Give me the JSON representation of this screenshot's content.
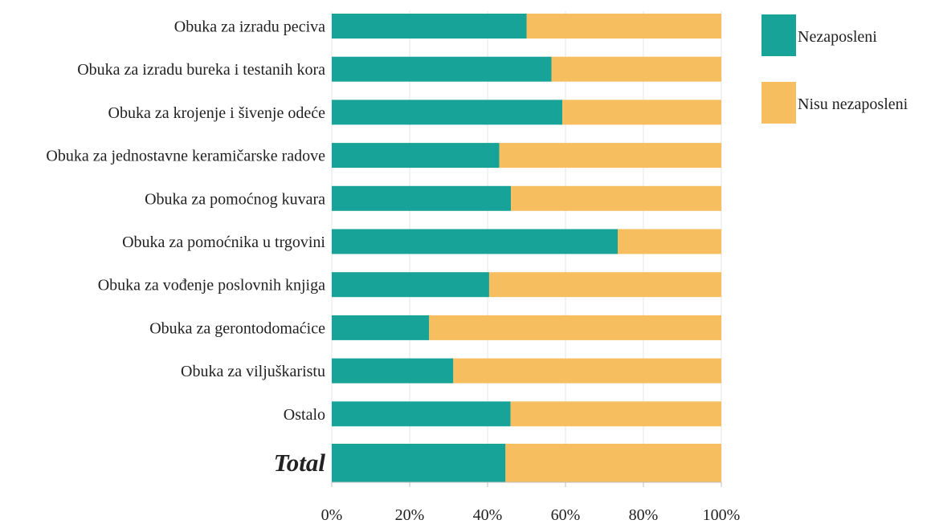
{
  "chart_data": {
    "type": "bar",
    "orientation": "horizontal",
    "stacked": true,
    "percent_stacked": true,
    "categories": [
      "Obuka za izradu peciva",
      "Obuka za izradu bureka i testanih kora",
      "Obuka za krojenje i šivenje odeće",
      "Obuka za jednostavne keramičarske radove",
      "Obuka za pomoćnog kuvara",
      "Obuka za pomoćnika u trgovini",
      "Obuka za vođenje poslovnih knjiga",
      "Obuka za gerontodomaćice",
      "Obuka za viljuškaristu",
      "Ostalo",
      "Total"
    ],
    "emphasized_category": "Total",
    "series": [
      {
        "name": "Nezaposleni",
        "color": "#17A398",
        "values": [
          50,
          56.4,
          59.2,
          43,
          46,
          73.4,
          40.4,
          25,
          31.2,
          45.9,
          44.6
        ]
      },
      {
        "name": "Nisu nezaposleni",
        "color": "#F6BE5E",
        "values": [
          50,
          43.6,
          40.8,
          57,
          54,
          26.6,
          59.6,
          75,
          68.8,
          54.1,
          55.4
        ]
      }
    ],
    "x_ticks": [
      "0%",
      "20%",
      "40%",
      "60%",
      "80%",
      "100%"
    ],
    "xlim": [
      0,
      100
    ],
    "xlabel": "",
    "ylabel": "",
    "title": "",
    "grid": "vertical",
    "legend_position": "right"
  }
}
